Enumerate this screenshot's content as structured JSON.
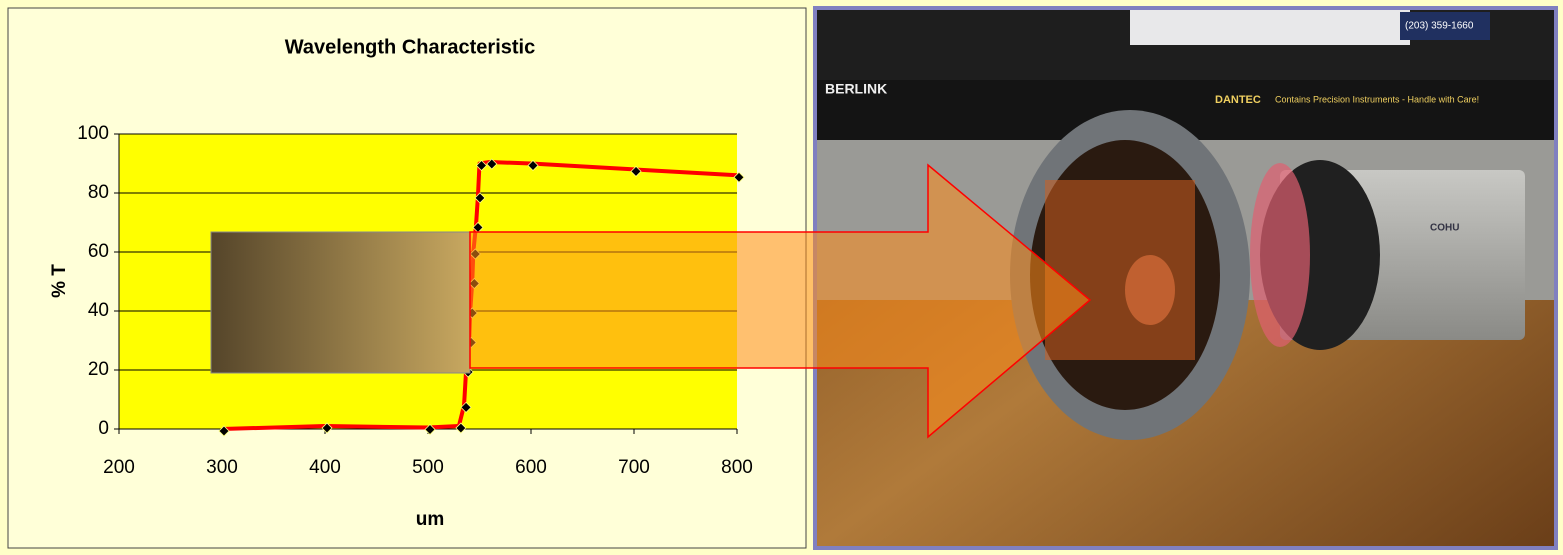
{
  "chart_data": {
    "type": "line",
    "title": "Wavelength Characteristic",
    "x_label": "um",
    "y_label": "% T",
    "x": [
      300,
      400,
      500,
      530,
      535,
      537,
      540,
      541,
      543,
      544,
      546.6,
      548.5,
      550,
      560,
      600,
      700,
      800
    ],
    "values": [
      0,
      1,
      0.5,
      1,
      8,
      20,
      30,
      40,
      50,
      60,
      69,
      79,
      90,
      90.5,
      90,
      88,
      86
    ],
    "color": "#ff0000",
    "marker_color": "#000000",
    "xlim": [
      200,
      800
    ],
    "xticks": [
      200,
      300,
      400,
      500,
      600,
      700,
      800
    ],
    "ylim": [
      0,
      100
    ],
    "yticks": [
      0,
      20,
      40,
      60,
      80,
      100
    ],
    "grid": true
  },
  "photo": {
    "labels": [
      "BERLINK",
      "DANTEC",
      "Contains Precision Instruments - Handle with Care!",
      "(203) 359-1660",
      "COHU"
    ]
  }
}
